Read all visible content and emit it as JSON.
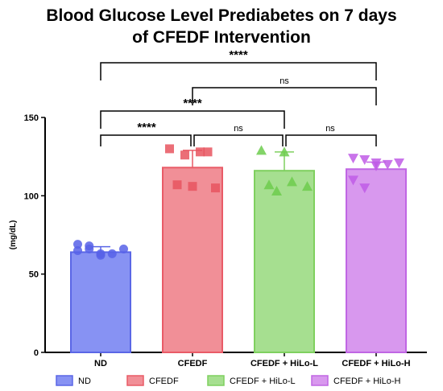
{
  "chart_data": {
    "type": "bar",
    "title_line1": "Blood Glucose Level Prediabetes on 7 days",
    "title_line2": "of CFEDF Intervention",
    "ylabel": "(mg/dL)",
    "ylim": [
      0,
      150
    ],
    "yticks": [
      0,
      50,
      100,
      150
    ],
    "categories": [
      "ND",
      "CFEDF",
      "CFEDF + HiLo-L",
      "CFEDF + HiLo-H"
    ],
    "values": [
      64,
      118,
      116,
      117
    ],
    "errors": [
      3.5,
      11,
      12,
      4.5
    ],
    "colors": {
      "fill": [
        "#8792f3",
        "#f18f97",
        "#a6df90",
        "#d898ee"
      ],
      "stroke": [
        "#5a66e6",
        "#e95b67",
        "#7fd05f",
        "#c066e4"
      ],
      "point": [
        "#5762e8",
        "#e8555f",
        "#6dcc4d",
        "#c05ce6"
      ]
    },
    "markers": [
      "circle",
      "square",
      "triangle-up",
      "triangle-down"
    ],
    "points": [
      [
        69,
        66,
        63,
        63,
        66,
        65,
        68,
        62
      ],
      [
        130,
        126,
        128,
        105,
        107,
        106,
        128
      ],
      [
        129,
        103,
        109,
        106,
        107,
        128
      ],
      [
        124,
        123,
        119,
        120,
        121,
        110,
        105,
        121
      ]
    ],
    "comparisons": [
      {
        "from": 0,
        "to": 1,
        "label": "****"
      },
      {
        "from": 1,
        "to": 2,
        "label": "ns"
      },
      {
        "from": 2,
        "to": 3,
        "label": "ns"
      },
      {
        "from": 0,
        "to": 2,
        "label": "****"
      },
      {
        "from": 1,
        "to": 3,
        "label": "ns"
      },
      {
        "from": 0,
        "to": 3,
        "label": "****"
      }
    ],
    "legend": [
      "ND",
      "CFEDF",
      "CFEDF + HiLo-L",
      "CFEDF + HiLo-H"
    ],
    "legend_position": "bottom",
    "grid": false
  }
}
